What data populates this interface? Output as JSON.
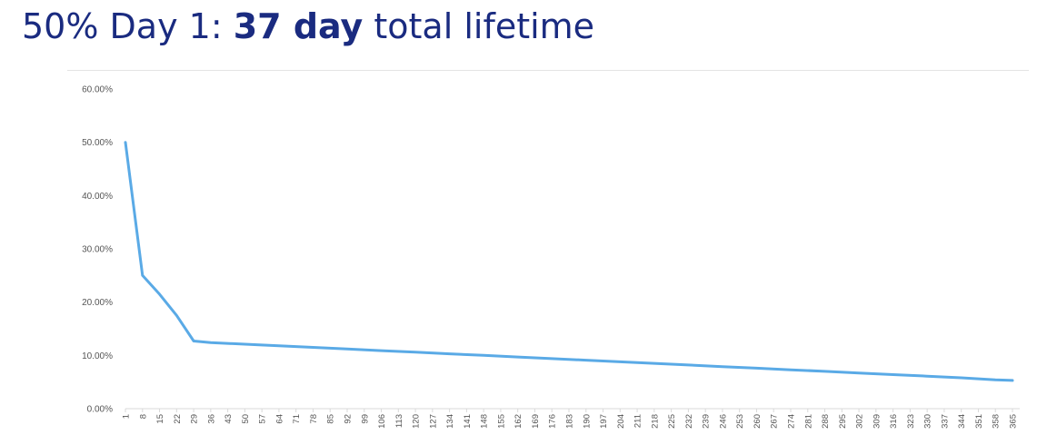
{
  "title": {
    "prefix": "50% Day 1: ",
    "emphasis": "37 day",
    "suffix": " total lifetime"
  },
  "colors": {
    "title": "#1a2b80",
    "line": "#5aaae6",
    "axis": "#d9d9d9",
    "tick_text": "#555555"
  },
  "chart_data": {
    "type": "line",
    "title": "",
    "xlabel": "",
    "ylabel": "",
    "ylim": [
      0,
      0.6
    ],
    "y_ticks": [
      0,
      0.1,
      0.2,
      0.3,
      0.4,
      0.5,
      0.6
    ],
    "y_tick_labels": [
      "0.00%",
      "10.00%",
      "20.00%",
      "30.00%",
      "40.00%",
      "50.00%",
      "60.00%"
    ],
    "x_ticks": [
      1,
      8,
      15,
      22,
      29,
      36,
      43,
      50,
      57,
      64,
      71,
      78,
      85,
      92,
      99,
      106,
      113,
      120,
      127,
      134,
      141,
      148,
      155,
      162,
      169,
      176,
      183,
      190,
      197,
      204,
      211,
      218,
      225,
      232,
      239,
      246,
      253,
      260,
      267,
      274,
      281,
      288,
      295,
      302,
      309,
      316,
      323,
      330,
      337,
      344,
      351,
      358,
      365
    ],
    "xlim": [
      1,
      365
    ],
    "grid": false,
    "legend": "none",
    "series": [
      {
        "x": [
          1,
          8,
          15,
          22,
          29,
          36,
          50,
          64,
          78,
          92,
          106,
          120,
          134,
          148,
          162,
          176,
          190,
          204,
          218,
          232,
          246,
          260,
          274,
          288,
          302,
          316,
          330,
          344,
          358,
          365
        ],
        "y": [
          0.5,
          0.25,
          0.215,
          0.175,
          0.127,
          0.124,
          0.121,
          0.118,
          0.115,
          0.112,
          0.109,
          0.106,
          0.103,
          0.1,
          0.097,
          0.094,
          0.091,
          0.088,
          0.085,
          0.082,
          0.079,
          0.076,
          0.073,
          0.07,
          0.067,
          0.064,
          0.061,
          0.058,
          0.054,
          0.053
        ]
      }
    ]
  }
}
